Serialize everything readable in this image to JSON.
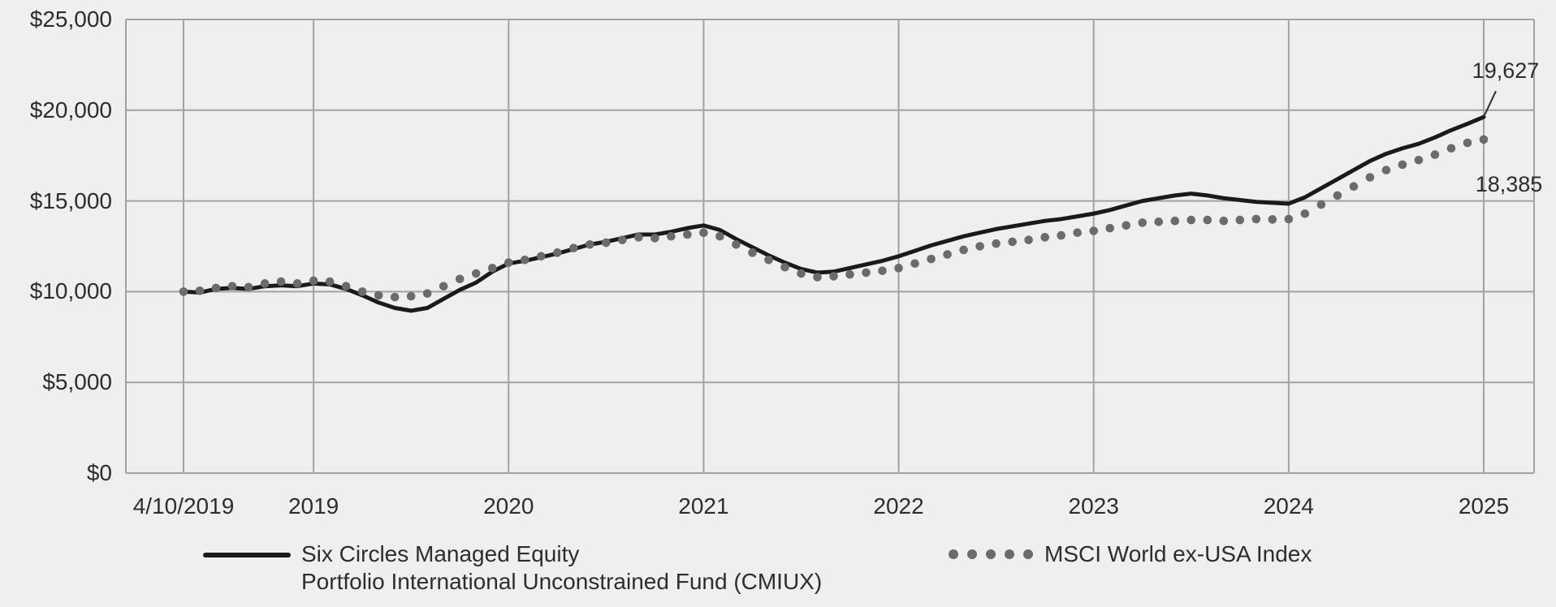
{
  "chart_data": {
    "type": "line",
    "title": "",
    "ylim": [
      0,
      25000
    ],
    "grid": true,
    "y_ticks": [
      {
        "label": "$25,000",
        "value": 25000
      },
      {
        "label": "$20,000",
        "value": 20000
      },
      {
        "label": "$15,000",
        "value": 15000
      },
      {
        "label": "$10,000",
        "value": 10000
      },
      {
        "label": "$5,000",
        "value": 5000
      },
      {
        "label": "$0",
        "value": 0
      }
    ],
    "x_ticks": [
      {
        "label": "4/10/2019",
        "month_index": 0
      },
      {
        "label": "2019",
        "month_index": 8
      },
      {
        "label": "2020",
        "month_index": 20
      },
      {
        "label": "2021",
        "month_index": 32
      },
      {
        "label": "2022",
        "month_index": 44
      },
      {
        "label": "2023",
        "month_index": 56
      },
      {
        "label": "2024",
        "month_index": 68
      },
      {
        "label": "2025",
        "month_index": 80
      }
    ],
    "series": [
      {
        "name": "Six Circles Managed Equity Portfolio International Unconstrained Fund (CMIUX)",
        "style": "solid",
        "color": "#1a1a1a",
        "start_value": 10000,
        "end_value": 19627,
        "values": [
          10000,
          9950,
          10150,
          10200,
          10150,
          10300,
          10350,
          10300,
          10450,
          10400,
          10150,
          9800,
          9400,
          9100,
          8950,
          9100,
          9600,
          10100,
          10500,
          11100,
          11550,
          11700,
          11900,
          12100,
          12350,
          12600,
          12750,
          12950,
          13150,
          13150,
          13300,
          13500,
          13650,
          13400,
          12900,
          12450,
          12000,
          11600,
          11250,
          11050,
          11100,
          11300,
          11500,
          11700,
          11950,
          12250,
          12550,
          12800,
          13050,
          13250,
          13450,
          13600,
          13750,
          13900,
          14000,
          14150,
          14300,
          14500,
          14750,
          15000,
          15150,
          15300,
          15400,
          15300,
          15150,
          15050,
          14950,
          14900,
          14850,
          15200,
          15700,
          16200,
          16700,
          17200,
          17600,
          17900,
          18150,
          18500,
          18900,
          19250,
          19627
        ]
      },
      {
        "name": "MSCI World ex-USA Index",
        "style": "dotted",
        "color": "#6b6b6b",
        "start_value": 10000,
        "end_value": 18385,
        "values": [
          10000,
          10050,
          10200,
          10300,
          10250,
          10450,
          10550,
          10450,
          10600,
          10550,
          10300,
          10000,
          9800,
          9700,
          9750,
          9900,
          10300,
          10700,
          11000,
          11300,
          11600,
          11750,
          11950,
          12150,
          12400,
          12600,
          12700,
          12850,
          13000,
          12950,
          13050,
          13150,
          13250,
          13050,
          12600,
          12150,
          11750,
          11350,
          11000,
          10800,
          10850,
          10950,
          11050,
          11150,
          11300,
          11550,
          11800,
          12050,
          12300,
          12500,
          12650,
          12750,
          12850,
          13000,
          13100,
          13250,
          13350,
          13500,
          13650,
          13800,
          13850,
          13900,
          13950,
          13950,
          13900,
          13950,
          14000,
          13980,
          14000,
          14300,
          14800,
          15300,
          15800,
          16300,
          16700,
          17000,
          17250,
          17550,
          17900,
          18200,
          18385
        ]
      }
    ]
  },
  "annotations": {
    "fund_end": "19,627",
    "index_end": "18,385"
  },
  "legend": {
    "fund_line1": "Six Circles Managed Equity",
    "fund_line2": "Portfolio International Unconstrained Fund (CMIUX)",
    "index_label": "MSCI World ex-USA Index"
  }
}
